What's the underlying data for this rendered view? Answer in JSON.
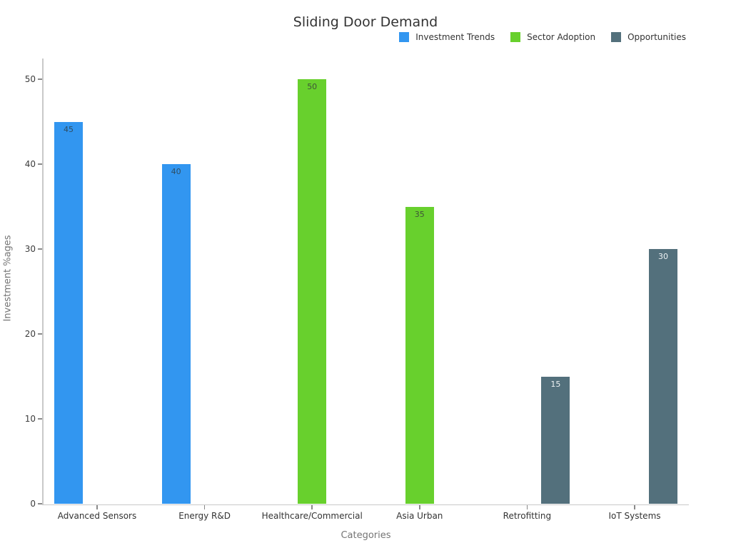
{
  "chart_data": {
    "type": "bar",
    "title": "Sliding Door Demand",
    "xlabel": "Categories",
    "ylabel": "Investment %ages",
    "ylim": [
      0,
      50
    ],
    "yticks": [
      0,
      10,
      20,
      30,
      40,
      50
    ],
    "grid": false,
    "legend_position": "top-right",
    "categories": [
      "Advanced Sensors",
      "Energy R&D",
      "Healthcare/Commercial",
      "Asia Urban",
      "Retrofitting",
      "IoT Systems"
    ],
    "series": [
      {
        "name": "Investment Trends",
        "color": "#3296f0",
        "value_label_color": "#2e4d63",
        "values": [
          45,
          40,
          null,
          null,
          null,
          null
        ]
      },
      {
        "name": "Sector Adoption",
        "color": "#68d02d",
        "value_label_color": "#3e5338",
        "values": [
          null,
          null,
          50,
          35,
          null,
          null
        ]
      },
      {
        "name": "Opportunities",
        "color": "#53707c",
        "value_label_color": "#eef2f4",
        "values": [
          null,
          null,
          null,
          null,
          15,
          30
        ]
      }
    ]
  },
  "colors": {
    "background": "#ffffff",
    "axis_spine": "#c9c9c9",
    "tick_mark": "#8a8a8a",
    "tick_label": "#3c3c3c",
    "axis_title": "#757575",
    "title_text": "#333333",
    "legend_text": "#333333"
  }
}
